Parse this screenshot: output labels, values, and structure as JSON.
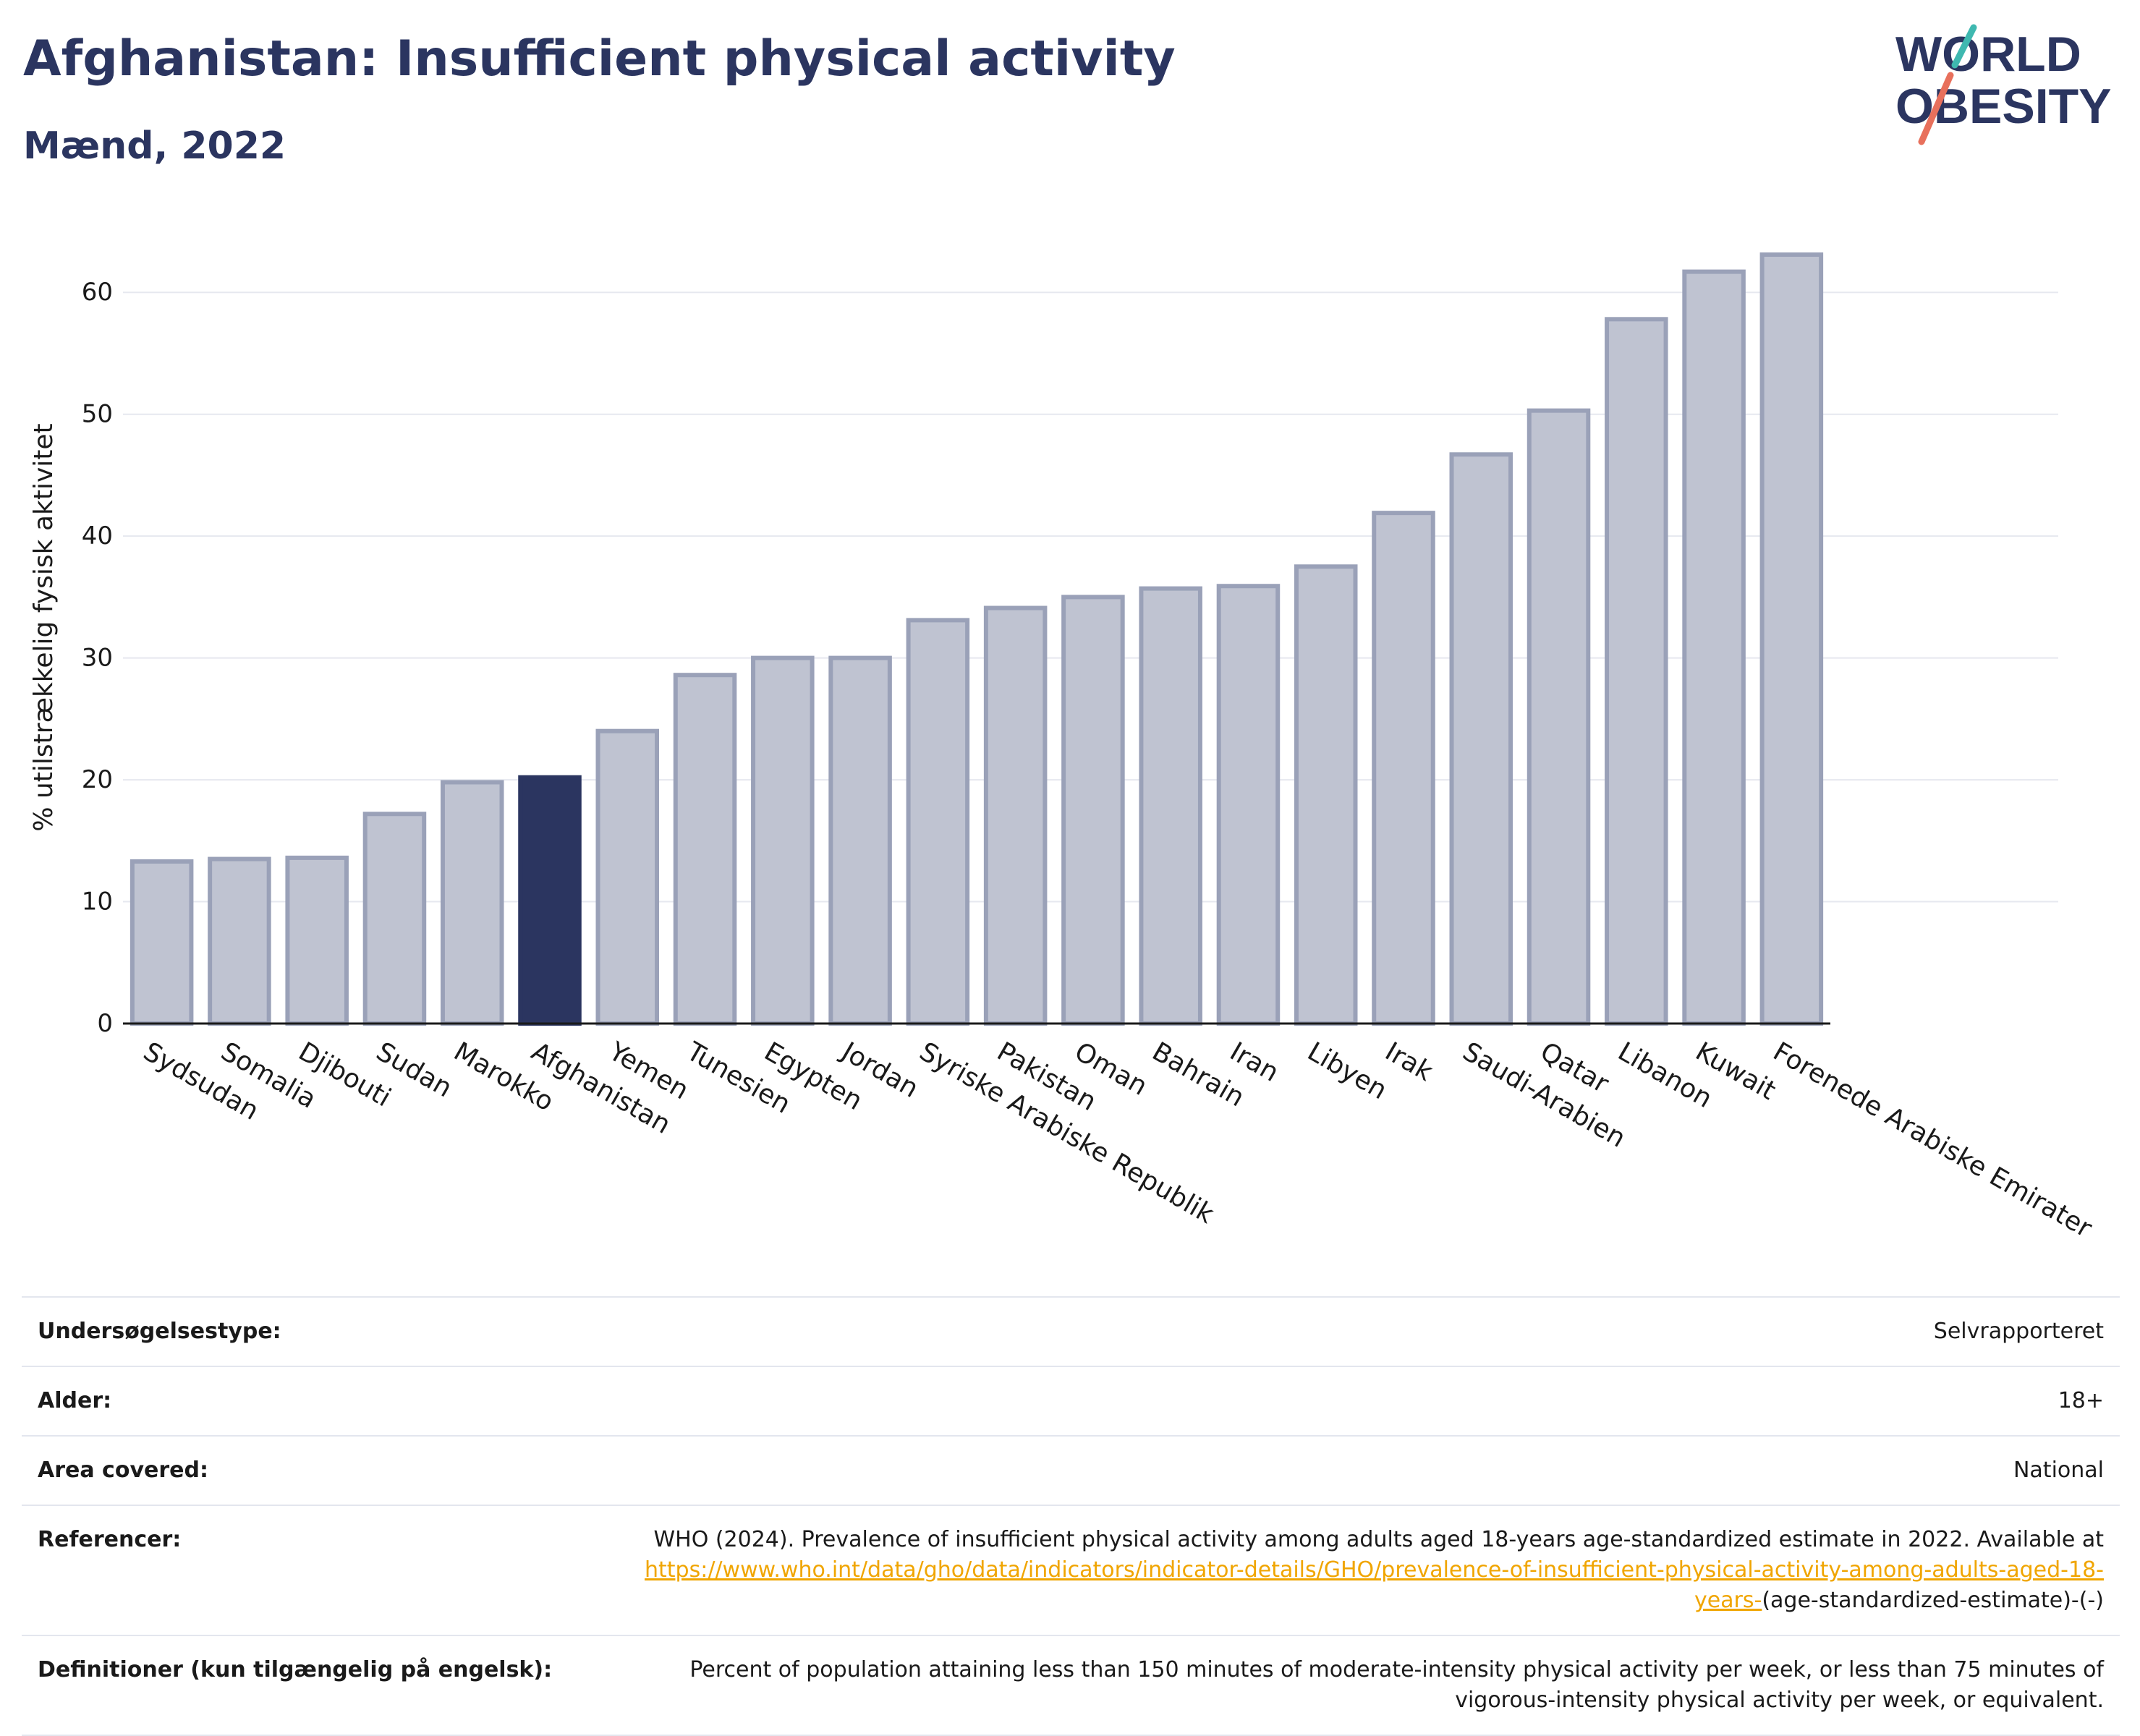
{
  "header": {
    "title": "Afghanistan: Insufficient physical activity",
    "subtitle": "Mænd, 2022",
    "logo_line1": "WORLD",
    "logo_line2": "OBESITY"
  },
  "colors": {
    "bar": "#bfc3d1",
    "bar_stroke": "#9aa1b8",
    "highlight": "#2b3560",
    "grid": "#e6e8ef",
    "title": "#2b3560",
    "logo_teal": "#3fb8b0",
    "logo_coral": "#e8705c"
  },
  "chart_data": {
    "type": "bar",
    "categories": [
      "Sydsudan",
      "Somalia",
      "Djibouti",
      "Sudan",
      "Marokko",
      "Afghanistan",
      "Yemen",
      "Tunesien",
      "Egypten",
      "Jordan",
      "Syriske Arabiske Republik",
      "Pakistan",
      "Oman",
      "Bahrain",
      "Iran",
      "Libyen",
      "Irak",
      "Saudi-Arabien",
      "Qatar",
      "Libanon",
      "Kuwait",
      "Forenede Arabiske Emirater"
    ],
    "values": [
      13.3,
      13.5,
      13.6,
      17.2,
      19.8,
      20.2,
      24.0,
      28.6,
      30.0,
      30.0,
      33.1,
      34.1,
      35.0,
      35.7,
      35.9,
      37.5,
      41.9,
      46.7,
      50.3,
      57.8,
      61.7,
      63.1
    ],
    "highlight": "Afghanistan",
    "title": "Afghanistan: Insufficient physical activity",
    "subtitle": "Mænd, 2022",
    "xlabel": "",
    "ylabel": "% utilstrækkelig fysisk aktivitet",
    "ylim": [
      0,
      65
    ],
    "yticks": [
      0,
      10,
      20,
      30,
      40,
      50,
      60
    ],
    "grid": true,
    "legend": "none"
  },
  "info": {
    "rows": [
      {
        "label": "Undersøgelsestype:",
        "value": "Selvrapporteret"
      },
      {
        "label": "Alder:",
        "value": "18+"
      },
      {
        "label": "Area covered:",
        "value": "National"
      }
    ],
    "references": {
      "label": "Referencer:",
      "text": "WHO (2024). Prevalence of insufficient physical activity among adults aged 18-years age-standardized estimate in 2022. Available at",
      "link": "https://www.who.int/data/gho/data/indicators/indicator-details/GHO/prevalence-of-insufficient-physical-activity-among-adults-aged-18-years-",
      "suffix": "(age-standardized-estimate)-(-)"
    },
    "definitions": {
      "label": "Definitioner (kun tilgængelig på engelsk):",
      "value": "Percent of population attaining less than 150 minutes of moderate-intensity physical activity per week, or less than 75 minutes of vigorous-intensity physical activity per week, or equivalent."
    }
  }
}
